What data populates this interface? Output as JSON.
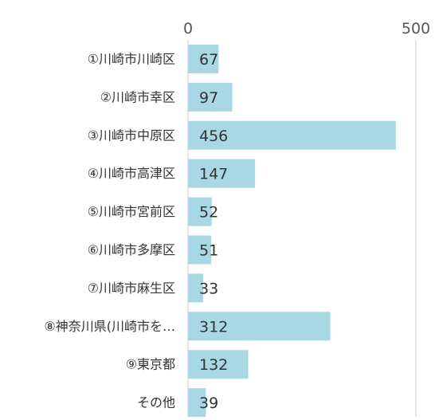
{
  "chart_data": {
    "type": "bar",
    "orientation": "horizontal",
    "categories": [
      "①川崎市川崎区",
      "②川崎市幸区",
      "③川崎市中原区",
      "④川崎市高津区",
      "⑤川崎市宮前区",
      "⑥川崎市多摩区",
      "⑦川崎市麻生区",
      "⑧神奈川県(川崎市を…",
      "⑨東京都",
      "その他"
    ],
    "values": [
      67,
      97,
      456,
      147,
      52,
      51,
      33,
      312,
      132,
      39
    ],
    "x_ticks": [
      "0",
      "500"
    ],
    "xlim": [
      0,
      500
    ],
    "grid": true,
    "bar_color": "#a8d8e3",
    "grid_color": "#cfcfcf",
    "text_color": "#333333",
    "tick_color": "#555555"
  }
}
